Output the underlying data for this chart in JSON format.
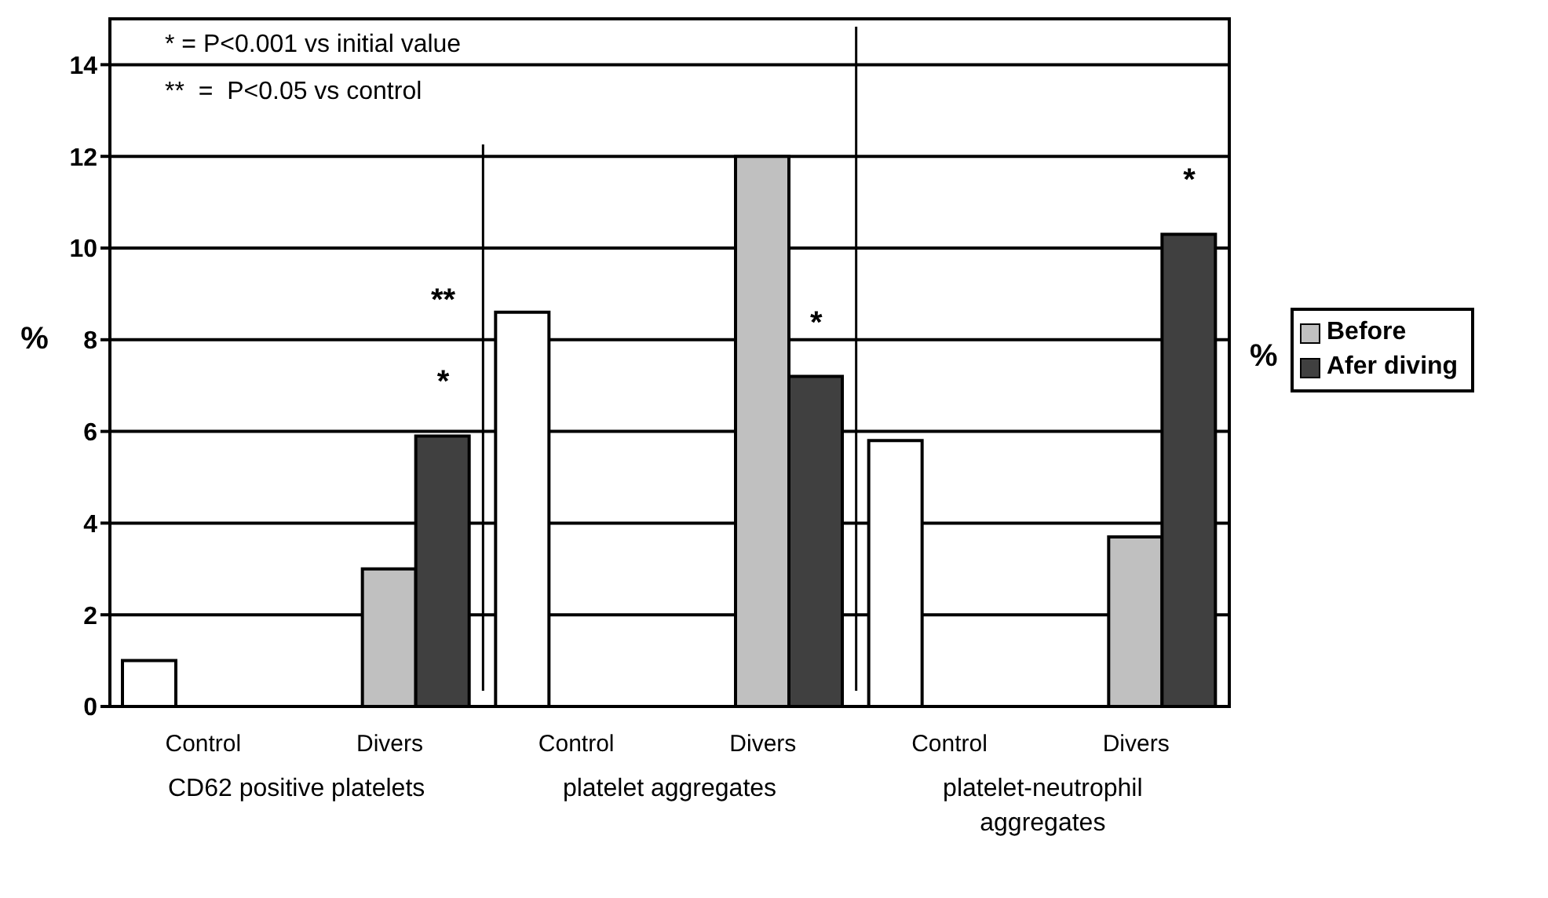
{
  "chart_data": {
    "type": "bar",
    "categories": [
      "Control",
      "Divers",
      "Control",
      "Divers",
      "Control",
      "Divers"
    ],
    "series": [
      {
        "color": "#ffffff",
        "values": [
          1.0,
          null,
          8.6,
          null,
          5.8,
          null
        ]
      },
      {
        "name": "Before",
        "color": "#c0c0c0",
        "values": [
          null,
          3.0,
          null,
          12.0,
          null,
          3.7
        ]
      },
      {
        "name": "Afer diving",
        "color": "#404040",
        "values": [
          null,
          5.9,
          null,
          7.2,
          null,
          10.3
        ]
      }
    ],
    "ylim": [
      0,
      15
    ],
    "yticks": [
      0,
      2,
      4,
      6,
      8,
      10,
      12,
      14
    ],
    "ylabel": "%",
    "legend_title": "%",
    "legend": "right",
    "grid": "y",
    "annotations": [
      "* = P<0.001 vs initial value",
      "**  =  P<0.05 vs control",
      "**",
      "*",
      "*",
      "*",
      "CD62 positive platelets",
      "platelet aggregates",
      "platelet-neutrophil aggregates"
    ]
  }
}
